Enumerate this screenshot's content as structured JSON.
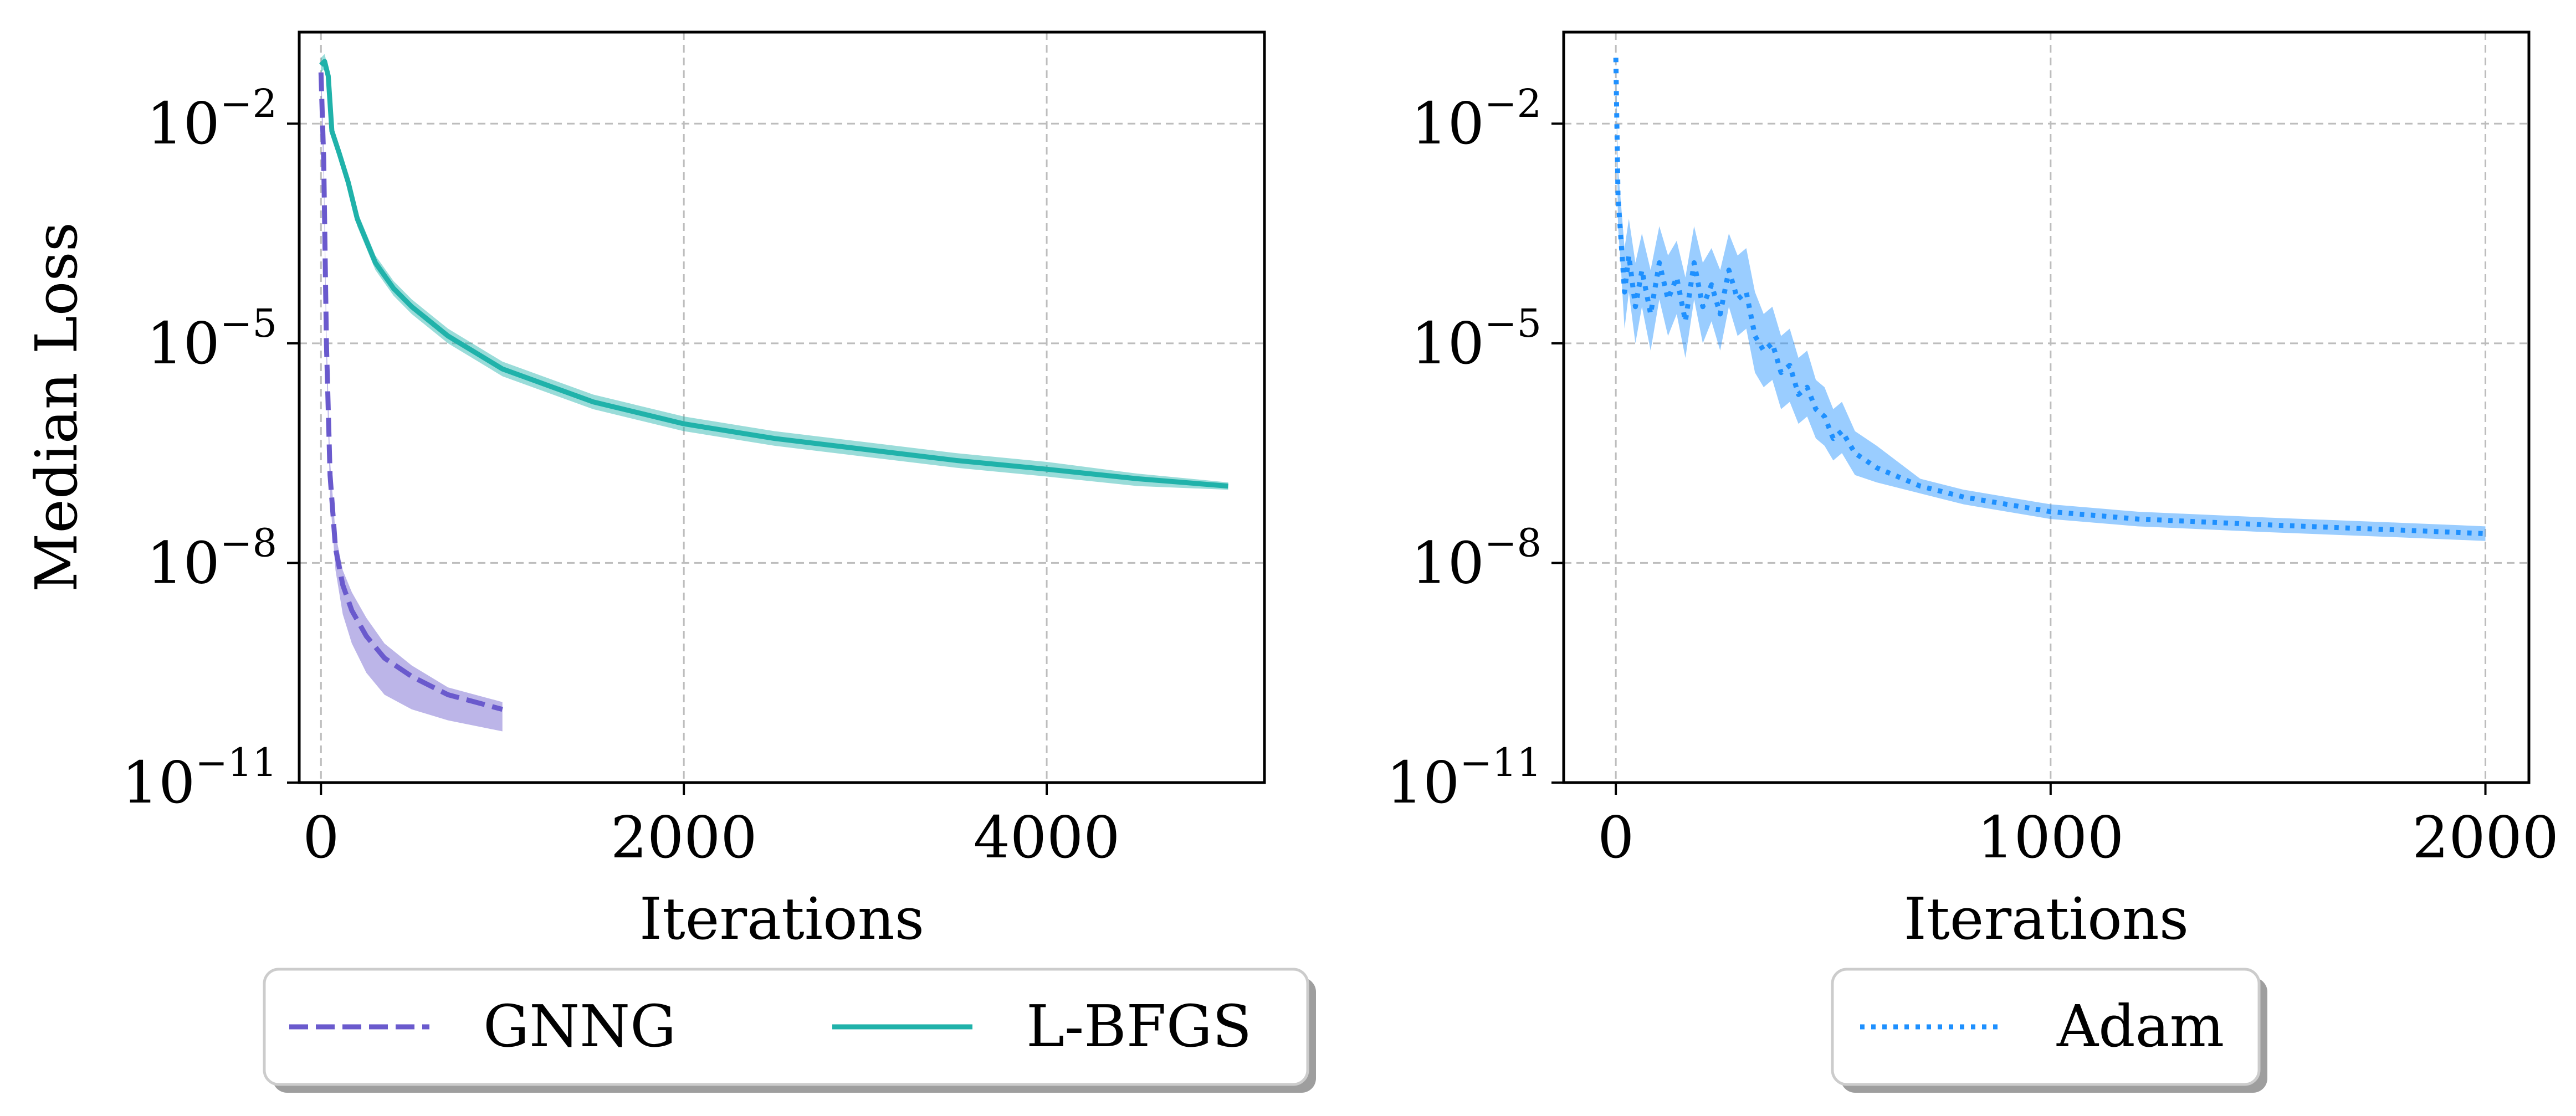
{
  "chart_data": [
    {
      "type": "line",
      "ylabel": "Median Loss",
      "xlabel": "Iterations",
      "yscale": "log",
      "ylim_exp": [
        -11,
        -0.75
      ],
      "xlim": [
        -120,
        5200
      ],
      "xticks": [
        0,
        2000,
        4000
      ],
      "xtick_labels": [
        "0",
        "2000",
        "4000"
      ],
      "yticks_exp": [
        -2,
        -5,
        -8,
        -11
      ],
      "ytick_base": "10",
      "ytick_exp_labels": [
        "−2",
        "−5",
        "−8",
        "−11"
      ],
      "grid": true,
      "legend_position": "bottom",
      "series": [
        {
          "name": "GNNG",
          "color": "#6a5acd",
          "linestyle": "dashed",
          "x": [
            0,
            15,
            30,
            50,
            80,
            120,
            170,
            250,
            350,
            500,
            700,
            1000
          ],
          "log10_y": [
            -1.3,
            -2.5,
            -5.0,
            -6.8,
            -7.8,
            -8.3,
            -8.65,
            -9.0,
            -9.3,
            -9.55,
            -9.8,
            -10.0
          ],
          "band_log10_low": [
            -1.6,
            -2.8,
            -5.3,
            -7.1,
            -8.1,
            -8.7,
            -9.1,
            -9.5,
            -9.8,
            -10.0,
            -10.15,
            -10.3
          ],
          "band_log10_high": [
            -1.2,
            -2.3,
            -4.8,
            -6.6,
            -7.6,
            -8.1,
            -8.4,
            -8.75,
            -9.1,
            -9.4,
            -9.7,
            -9.9
          ]
        },
        {
          "name": "L-BFGS",
          "color": "#20b2aa",
          "linestyle": "solid",
          "x": [
            0,
            20,
            40,
            60,
            100,
            150,
            200,
            300,
            400,
            500,
            700,
            1000,
            1500,
            2000,
            2500,
            3000,
            3500,
            4000,
            4500,
            5000
          ],
          "log10_y": [
            -1.2,
            -1.15,
            -1.35,
            -2.1,
            -2.4,
            -2.8,
            -3.3,
            -3.9,
            -4.25,
            -4.5,
            -4.9,
            -5.35,
            -5.8,
            -6.1,
            -6.3,
            -6.45,
            -6.6,
            -6.72,
            -6.85,
            -6.95
          ],
          "band_log10_low": [
            -1.3,
            -1.25,
            -1.45,
            -2.2,
            -2.5,
            -2.9,
            -3.4,
            -4.0,
            -4.35,
            -4.6,
            -5.0,
            -5.45,
            -5.9,
            -6.2,
            -6.4,
            -6.55,
            -6.7,
            -6.82,
            -6.95,
            -7.0
          ],
          "band_log10_high": [
            -1.1,
            -1.05,
            -1.25,
            -2.0,
            -2.3,
            -2.7,
            -3.2,
            -3.8,
            -4.15,
            -4.4,
            -4.8,
            -5.25,
            -5.7,
            -6.0,
            -6.2,
            -6.35,
            -6.5,
            -6.62,
            -6.78,
            -6.9
          ]
        }
      ]
    },
    {
      "type": "line",
      "xlabel": "Iterations",
      "yscale": "log",
      "ylim_exp": [
        -11,
        -0.75
      ],
      "xlim": [
        -120,
        2100
      ],
      "xticks": [
        0,
        1000,
        2000
      ],
      "xtick_labels": [
        "0",
        "1000",
        "2000"
      ],
      "yticks_exp": [
        -2,
        -5,
        -8,
        -11
      ],
      "ytick_base": "10",
      "ytick_exp_labels": [
        "−2",
        "−5",
        "−8",
        "−11"
      ],
      "grid": true,
      "legend_position": "bottom",
      "series": [
        {
          "name": "Adam",
          "color": "#1e90ff",
          "linestyle": "dotted",
          "x": [
            0,
            5,
            12,
            20,
            30,
            45,
            60,
            80,
            100,
            120,
            140,
            160,
            180,
            200,
            220,
            240,
            260,
            280,
            300,
            320,
            340,
            360,
            380,
            400,
            420,
            440,
            460,
            480,
            500,
            520,
            550,
            600,
            700,
            800,
            1000,
            1200,
            1500,
            1800,
            2000
          ],
          "log10_y": [
            -1.1,
            -3.0,
            -3.6,
            -4.3,
            -3.8,
            -4.5,
            -4.0,
            -4.6,
            -3.9,
            -4.4,
            -4.1,
            -4.7,
            -3.9,
            -4.5,
            -4.2,
            -4.6,
            -4.0,
            -4.4,
            -4.3,
            -4.9,
            -5.1,
            -5.0,
            -5.4,
            -5.3,
            -5.7,
            -5.6,
            -5.9,
            -6.0,
            -6.3,
            -6.2,
            -6.5,
            -6.7,
            -6.95,
            -7.1,
            -7.3,
            -7.4,
            -7.48,
            -7.55,
            -7.6
          ],
          "band_log10_low": [
            -1.2,
            -3.4,
            -4.0,
            -4.8,
            -4.3,
            -5.0,
            -4.5,
            -5.1,
            -4.4,
            -4.9,
            -4.6,
            -5.2,
            -4.4,
            -5.0,
            -4.7,
            -5.1,
            -4.5,
            -4.9,
            -4.8,
            -5.4,
            -5.6,
            -5.5,
            -5.9,
            -5.8,
            -6.1,
            -6.0,
            -6.3,
            -6.4,
            -6.6,
            -6.5,
            -6.8,
            -6.9,
            -7.05,
            -7.2,
            -7.4,
            -7.5,
            -7.58,
            -7.65,
            -7.7
          ],
          "band_log10_high": [
            -1.0,
            -2.6,
            -3.1,
            -3.7,
            -3.3,
            -3.9,
            -3.5,
            -4.0,
            -3.4,
            -3.8,
            -3.6,
            -4.1,
            -3.4,
            -3.9,
            -3.7,
            -4.0,
            -3.5,
            -3.8,
            -3.7,
            -4.3,
            -4.6,
            -4.5,
            -4.9,
            -4.8,
            -5.2,
            -5.1,
            -5.5,
            -5.6,
            -5.9,
            -5.8,
            -6.2,
            -6.4,
            -6.85,
            -7.0,
            -7.2,
            -7.3,
            -7.38,
            -7.45,
            -7.5
          ]
        }
      ]
    }
  ]
}
